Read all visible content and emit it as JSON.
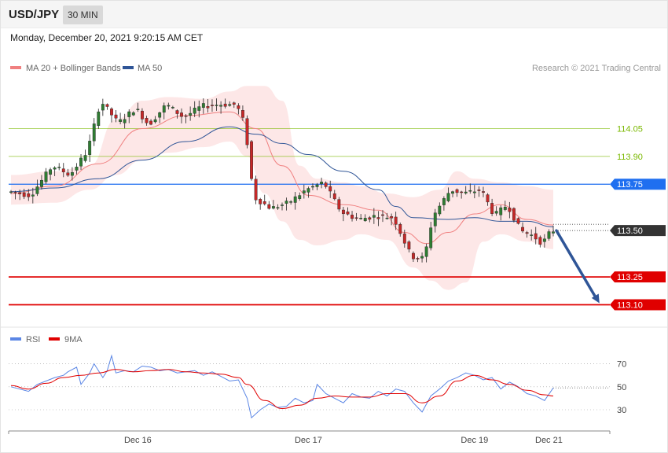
{
  "header": {
    "symbol": "USD/JPY",
    "timeframe": "30 MIN"
  },
  "timestamp": "Monday, December 20, 2021 9:20:15 AM CET",
  "legend": {
    "ma20": "MA 20 + Bollinger Bands",
    "ma50": "MA 50"
  },
  "copyright": "Research © 2021 Trading Central",
  "colors": {
    "ma20": "#f08080",
    "ma50": "#2f5597",
    "band": "#fde4e4",
    "up": "#2e7d32",
    "down": "#c62828",
    "support": "#e00000",
    "resistance": "#1f6ff0",
    "target": "#2f5597",
    "green_level": "#7ab800"
  },
  "chart_data": [
    {
      "type": "candlestick",
      "ylim": [
        113.03,
        114.26
      ],
      "xlim": [
        0,
        136
      ],
      "x_tick_labels": [
        {
          "label": "Dec 16",
          "x": 29
        },
        {
          "label": "Dec 17",
          "x": 68
        },
        {
          "label": "Dec 19",
          "x": 106
        },
        {
          "label": "Dec 21",
          "x": 123
        }
      ],
      "levels": [
        {
          "label": "114.05",
          "value": 114.05,
          "style": "thin",
          "color": "#7ab800"
        },
        {
          "label": "113.90",
          "value": 113.9,
          "style": "thin",
          "color": "#7ab800"
        },
        {
          "label": "113.75",
          "value": 113.75,
          "style": "resistance",
          "color": "#1f6ff0"
        },
        {
          "label": "113.50",
          "value": 113.5,
          "style": "current",
          "color": "#333333"
        },
        {
          "label": "113.25",
          "value": 113.25,
          "style": "support",
          "color": "#e00000"
        },
        {
          "label": "113.10",
          "value": 113.1,
          "style": "support",
          "color": "#e00000"
        }
      ],
      "forecast_arrow": {
        "from": [
          124,
          113.5
        ],
        "to": [
          136,
          113.1
        ]
      },
      "pivot_points": [
        [
          0,
          113.71
        ],
        [
          5,
          113.69
        ],
        [
          10,
          113.85
        ],
        [
          14,
          113.8
        ],
        [
          18,
          113.93
        ],
        [
          21,
          114.2
        ],
        [
          25,
          114.08
        ],
        [
          29,
          114.16
        ],
        [
          32,
          114.07
        ],
        [
          36,
          114.18
        ],
        [
          40,
          114.11
        ],
        [
          44,
          114.17
        ],
        [
          48,
          114.18
        ],
        [
          52,
          114.18
        ],
        [
          54,
          114.07
        ],
        [
          56,
          113.68
        ],
        [
          60,
          113.62
        ],
        [
          64,
          113.65
        ],
        [
          68,
          113.72
        ],
        [
          72,
          113.76
        ],
        [
          76,
          113.6
        ],
        [
          80,
          113.56
        ],
        [
          84,
          113.58
        ],
        [
          88,
          113.57
        ],
        [
          92,
          113.36
        ],
        [
          95,
          113.35
        ],
        [
          97,
          113.58
        ],
        [
          101,
          113.72
        ],
        [
          104,
          113.7
        ],
        [
          108,
          113.72
        ],
        [
          111,
          113.58
        ],
        [
          114,
          113.64
        ],
        [
          117,
          113.5
        ],
        [
          120,
          113.47
        ],
        [
          122,
          113.43
        ],
        [
          124,
          113.5
        ]
      ],
      "ma20": [
        [
          0,
          113.7
        ],
        [
          10,
          113.74
        ],
        [
          20,
          113.86
        ],
        [
          30,
          114.05
        ],
        [
          40,
          114.12
        ],
        [
          50,
          114.14
        ],
        [
          56,
          114.05
        ],
        [
          62,
          113.85
        ],
        [
          68,
          113.69
        ],
        [
          76,
          113.64
        ],
        [
          84,
          113.61
        ],
        [
          90,
          113.49
        ],
        [
          95,
          113.43
        ],
        [
          100,
          113.49
        ],
        [
          106,
          113.59
        ],
        [
          112,
          113.64
        ],
        [
          118,
          113.56
        ],
        [
          124,
          113.53
        ]
      ],
      "ma50": [
        [
          0,
          113.71
        ],
        [
          10,
          113.73
        ],
        [
          20,
          113.78
        ],
        [
          30,
          113.88
        ],
        [
          40,
          113.98
        ],
        [
          50,
          114.06
        ],
        [
          56,
          114.02
        ],
        [
          62,
          113.97
        ],
        [
          68,
          113.91
        ],
        [
          76,
          113.82
        ],
        [
          84,
          113.72
        ],
        [
          88,
          113.63
        ],
        [
          92,
          113.57
        ],
        [
          100,
          113.56
        ],
        [
          106,
          113.57
        ],
        [
          112,
          113.55
        ],
        [
          118,
          113.55
        ],
        [
          124,
          113.52
        ]
      ],
      "bollinger_upper": [
        [
          0,
          113.8
        ],
        [
          10,
          113.82
        ],
        [
          18,
          113.85
        ],
        [
          24,
          114.1
        ],
        [
          30,
          114.2
        ],
        [
          36,
          114.22
        ],
        [
          44,
          114.21
        ],
        [
          50,
          114.25
        ],
        [
          54,
          114.28
        ],
        [
          58,
          114.28
        ],
        [
          62,
          114.2
        ],
        [
          66,
          113.85
        ],
        [
          70,
          113.78
        ],
        [
          76,
          113.76
        ],
        [
          80,
          113.74
        ],
        [
          86,
          113.7
        ],
        [
          92,
          113.68
        ],
        [
          98,
          113.72
        ],
        [
          102,
          113.82
        ],
        [
          106,
          113.78
        ],
        [
          112,
          113.76
        ],
        [
          118,
          113.74
        ],
        [
          124,
          113.72
        ]
      ],
      "bollinger_lower": [
        [
          0,
          113.64
        ],
        [
          10,
          113.65
        ],
        [
          18,
          113.72
        ],
        [
          24,
          113.8
        ],
        [
          30,
          113.88
        ],
        [
          36,
          113.92
        ],
        [
          44,
          113.95
        ],
        [
          50,
          113.98
        ],
        [
          54,
          113.9
        ],
        [
          58,
          113.7
        ],
        [
          62,
          113.55
        ],
        [
          66,
          113.45
        ],
        [
          70,
          113.42
        ],
        [
          76,
          113.45
        ],
        [
          80,
          113.48
        ],
        [
          86,
          113.45
        ],
        [
          92,
          113.3
        ],
        [
          96,
          113.23
        ],
        [
          100,
          113.18
        ],
        [
          104,
          113.22
        ],
        [
          108,
          113.44
        ],
        [
          112,
          113.48
        ],
        [
          118,
          113.44
        ],
        [
          124,
          113.4
        ]
      ]
    },
    {
      "type": "line",
      "ylim": [
        17,
        82
      ],
      "xlim": [
        0,
        136
      ],
      "ylabels": [
        {
          "label": "70",
          "value": 70
        },
        {
          "label": "50",
          "value": 50
        },
        {
          "label": "30",
          "value": 30
        }
      ],
      "legend": {
        "rsi": "RSI",
        "ma9": "9MA"
      },
      "rsi": [
        [
          0,
          50
        ],
        [
          2,
          48
        ],
        [
          4,
          46
        ],
        [
          6,
          52
        ],
        [
          8,
          55
        ],
        [
          10,
          58
        ],
        [
          12,
          60
        ],
        [
          13,
          63
        ],
        [
          15,
          67
        ],
        [
          16,
          52
        ],
        [
          18,
          62
        ],
        [
          19,
          70
        ],
        [
          21,
          58
        ],
        [
          22,
          64
        ],
        [
          23,
          77
        ],
        [
          24,
          62
        ],
        [
          26,
          64
        ],
        [
          28,
          63
        ],
        [
          30,
          68
        ],
        [
          32,
          67
        ],
        [
          34,
          64
        ],
        [
          36,
          65
        ],
        [
          38,
          62
        ],
        [
          40,
          63
        ],
        [
          42,
          64
        ],
        [
          44,
          60
        ],
        [
          46,
          63
        ],
        [
          48,
          59
        ],
        [
          50,
          55
        ],
        [
          52,
          56
        ],
        [
          54,
          40
        ],
        [
          55,
          23
        ],
        [
          57,
          30
        ],
        [
          59,
          35
        ],
        [
          61,
          32
        ],
        [
          63,
          33
        ],
        [
          65,
          40
        ],
        [
          67,
          36
        ],
        [
          69,
          38
        ],
        [
          70,
          52
        ],
        [
          72,
          44
        ],
        [
          74,
          40
        ],
        [
          76,
          36
        ],
        [
          78,
          44
        ],
        [
          80,
          41
        ],
        [
          82,
          40
        ],
        [
          84,
          46
        ],
        [
          86,
          42
        ],
        [
          88,
          48
        ],
        [
          90,
          46
        ],
        [
          92,
          36
        ],
        [
          94,
          28
        ],
        [
          96,
          42
        ],
        [
          98,
          48
        ],
        [
          100,
          55
        ],
        [
          102,
          58
        ],
        [
          104,
          62
        ],
        [
          106,
          60
        ],
        [
          108,
          56
        ],
        [
          110,
          58
        ],
        [
          112,
          48
        ],
        [
          114,
          54
        ],
        [
          116,
          50
        ],
        [
          118,
          44
        ],
        [
          120,
          42
        ],
        [
          122,
          38
        ],
        [
          124,
          49
        ]
      ],
      "ma9": [
        [
          0,
          51
        ],
        [
          4,
          48
        ],
        [
          8,
          53
        ],
        [
          12,
          58
        ],
        [
          16,
          60
        ],
        [
          20,
          62
        ],
        [
          24,
          65
        ],
        [
          28,
          63
        ],
        [
          32,
          64
        ],
        [
          36,
          65
        ],
        [
          40,
          63
        ],
        [
          44,
          62
        ],
        [
          48,
          61
        ],
        [
          52,
          58
        ],
        [
          54,
          52
        ],
        [
          58,
          38
        ],
        [
          62,
          31
        ],
        [
          66,
          34
        ],
        [
          70,
          40
        ],
        [
          74,
          42
        ],
        [
          78,
          41
        ],
        [
          82,
          41
        ],
        [
          86,
          44
        ],
        [
          90,
          44
        ],
        [
          94,
          36
        ],
        [
          98,
          42
        ],
        [
          102,
          55
        ],
        [
          106,
          60
        ],
        [
          110,
          56
        ],
        [
          114,
          52
        ],
        [
          118,
          47
        ],
        [
          122,
          43
        ],
        [
          124,
          42
        ]
      ]
    }
  ]
}
